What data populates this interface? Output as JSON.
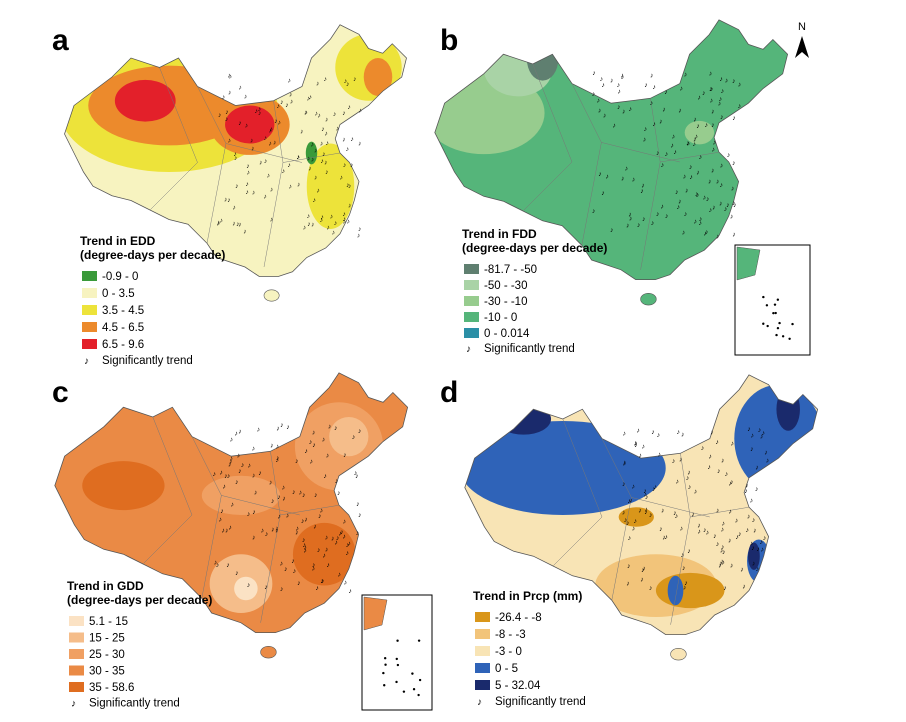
{
  "north_arrow": "N",
  "panels": [
    {
      "label": "a",
      "legend": {
        "title": "Trend in EDD",
        "subtitle": "(degree-days per decade)",
        "items": [
          {
            "label": "-0.9 - 0",
            "color": "#3a9a3a"
          },
          {
            "label": "0 - 3.5",
            "color": "#f7f3c0"
          },
          {
            "label": "3.5 - 4.5",
            "color": "#ede33a"
          },
          {
            "label": "4.5 - 6.5",
            "color": "#ec8a2c"
          },
          {
            "label": "6.5 - 9.6",
            "color": "#e3202a"
          }
        ],
        "significance": "Significantly trend"
      }
    },
    {
      "label": "b",
      "legend": {
        "title": "Trend in FDD",
        "subtitle": "(degree-days per decade)",
        "items": [
          {
            "label": "-81.7 - -50",
            "color": "#5f7f70"
          },
          {
            "label": "-50 - -30",
            "color": "#a9d3a6"
          },
          {
            "label": "-30 - -10",
            "color": "#97cc8e"
          },
          {
            "label": "-10 - 0",
            "color": "#55b57a"
          },
          {
            "label": "0 - 0.014",
            "color": "#2b8fa6"
          }
        ],
        "significance": "Significantly trend"
      }
    },
    {
      "label": "c",
      "legend": {
        "title": "Trend in GDD",
        "subtitle": "(degree-days per decade)",
        "items": [
          {
            "label": "5.1 - 15",
            "color": "#fbe2c4"
          },
          {
            "label": "15 - 25",
            "color": "#f5bd8a"
          },
          {
            "label": "25 - 30",
            "color": "#f0a063"
          },
          {
            "label": "30 - 35",
            "color": "#ea8a45"
          },
          {
            "label": "35 - 58.6",
            "color": "#df6d20"
          }
        ],
        "significance": "Significantly trend"
      }
    },
    {
      "label": "d",
      "legend": {
        "title": "Trend in Prcp (mm)",
        "items": [
          {
            "label": "-26.4 - -8",
            "color": "#d9961a"
          },
          {
            "label": "-8 - -3",
            "color": "#f2c47a"
          },
          {
            "label": "-3 - 0",
            "color": "#f8e4b5"
          },
          {
            "label": "0 - 5",
            "color": "#2f63b8"
          },
          {
            "label": "5 - 32.04",
            "color": "#1a2a6c"
          }
        ],
        "significance": "Significantly trend"
      }
    }
  ]
}
